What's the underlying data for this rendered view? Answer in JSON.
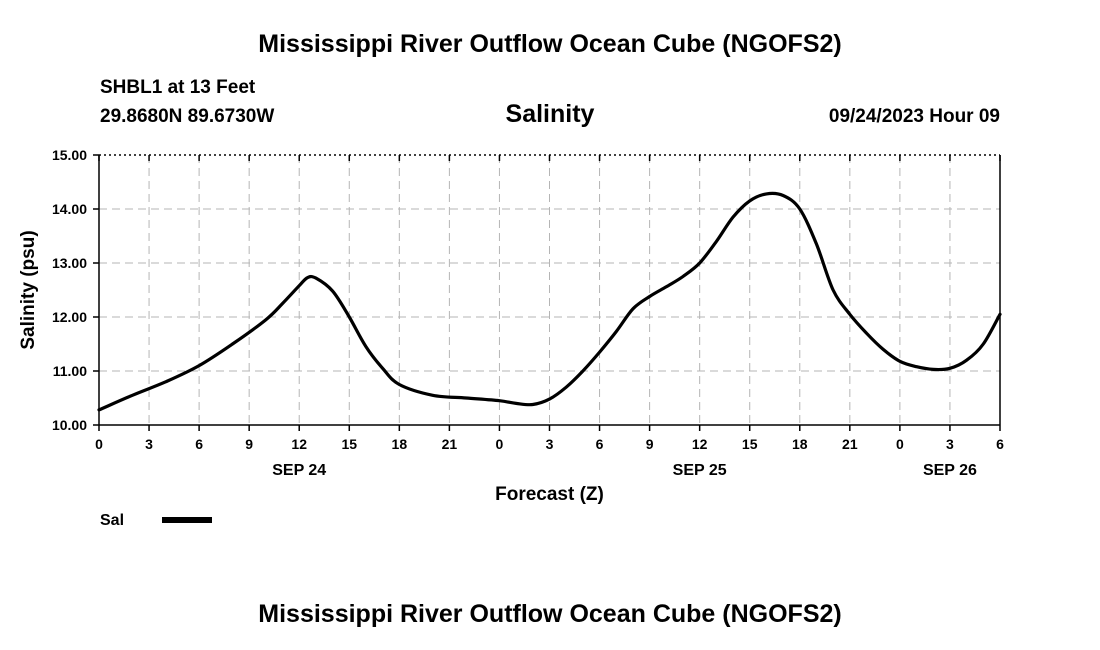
{
  "header": {
    "main_title": "Mississippi River Outflow Ocean Cube (NGOFS2)",
    "station": "SHBL1 at 13 Feet",
    "coordinates": "29.8680N  89.6730W",
    "subtitle": "Salinity",
    "datetime": "09/24/2023 Hour 09"
  },
  "footer": {
    "main_title": "Mississippi River Outflow Ocean Cube (NGOFS2)"
  },
  "chart_data": {
    "type": "line",
    "title": "Salinity",
    "xlabel": "Forecast (Z)",
    "ylabel": "Salinity (psu)",
    "xlim": [
      0,
      54
    ],
    "ylim": [
      10.0,
      15.0
    ],
    "y_ticks": [
      "10.00",
      "11.00",
      "12.00",
      "13.00",
      "14.00",
      "15.00"
    ],
    "x_tick_labels": [
      "0",
      "3",
      "6",
      "9",
      "12",
      "15",
      "18",
      "21",
      "0",
      "3",
      "6",
      "9",
      "12",
      "15",
      "18",
      "21",
      "0",
      "3",
      "6"
    ],
    "date_labels": [
      {
        "hour": 12,
        "label": "SEP 24"
      },
      {
        "hour": 36,
        "label": "SEP 25"
      },
      {
        "hour": 51,
        "label": "SEP 26"
      }
    ],
    "grid": true,
    "legend": {
      "label": "Sal",
      "position": "bottom-left"
    },
    "color": "#000000",
    "series": [
      {
        "name": "Sal",
        "x": [
          0,
          2,
          4,
          6,
          8,
          10,
          11,
          12,
          12.5,
          13,
          14,
          15,
          16,
          17,
          18,
          20,
          22,
          24,
          25,
          26,
          27,
          28,
          29,
          30,
          31,
          32,
          33,
          34,
          35,
          36,
          37,
          38,
          39,
          40,
          41,
          42,
          43,
          44,
          45,
          46,
          47,
          48,
          49,
          50,
          51,
          52,
          53,
          54
        ],
        "y": [
          10.28,
          10.55,
          10.8,
          11.1,
          11.5,
          11.95,
          12.25,
          12.58,
          12.73,
          12.72,
          12.48,
          12.0,
          11.45,
          11.05,
          10.75,
          10.55,
          10.5,
          10.45,
          10.4,
          10.38,
          10.48,
          10.7,
          11.0,
          11.35,
          11.73,
          12.15,
          12.38,
          12.56,
          12.75,
          13.0,
          13.4,
          13.85,
          14.15,
          14.28,
          14.25,
          14.0,
          13.35,
          12.5,
          12.05,
          11.7,
          11.4,
          11.18,
          11.08,
          11.03,
          11.05,
          11.2,
          11.5,
          12.05
        ]
      }
    ]
  }
}
